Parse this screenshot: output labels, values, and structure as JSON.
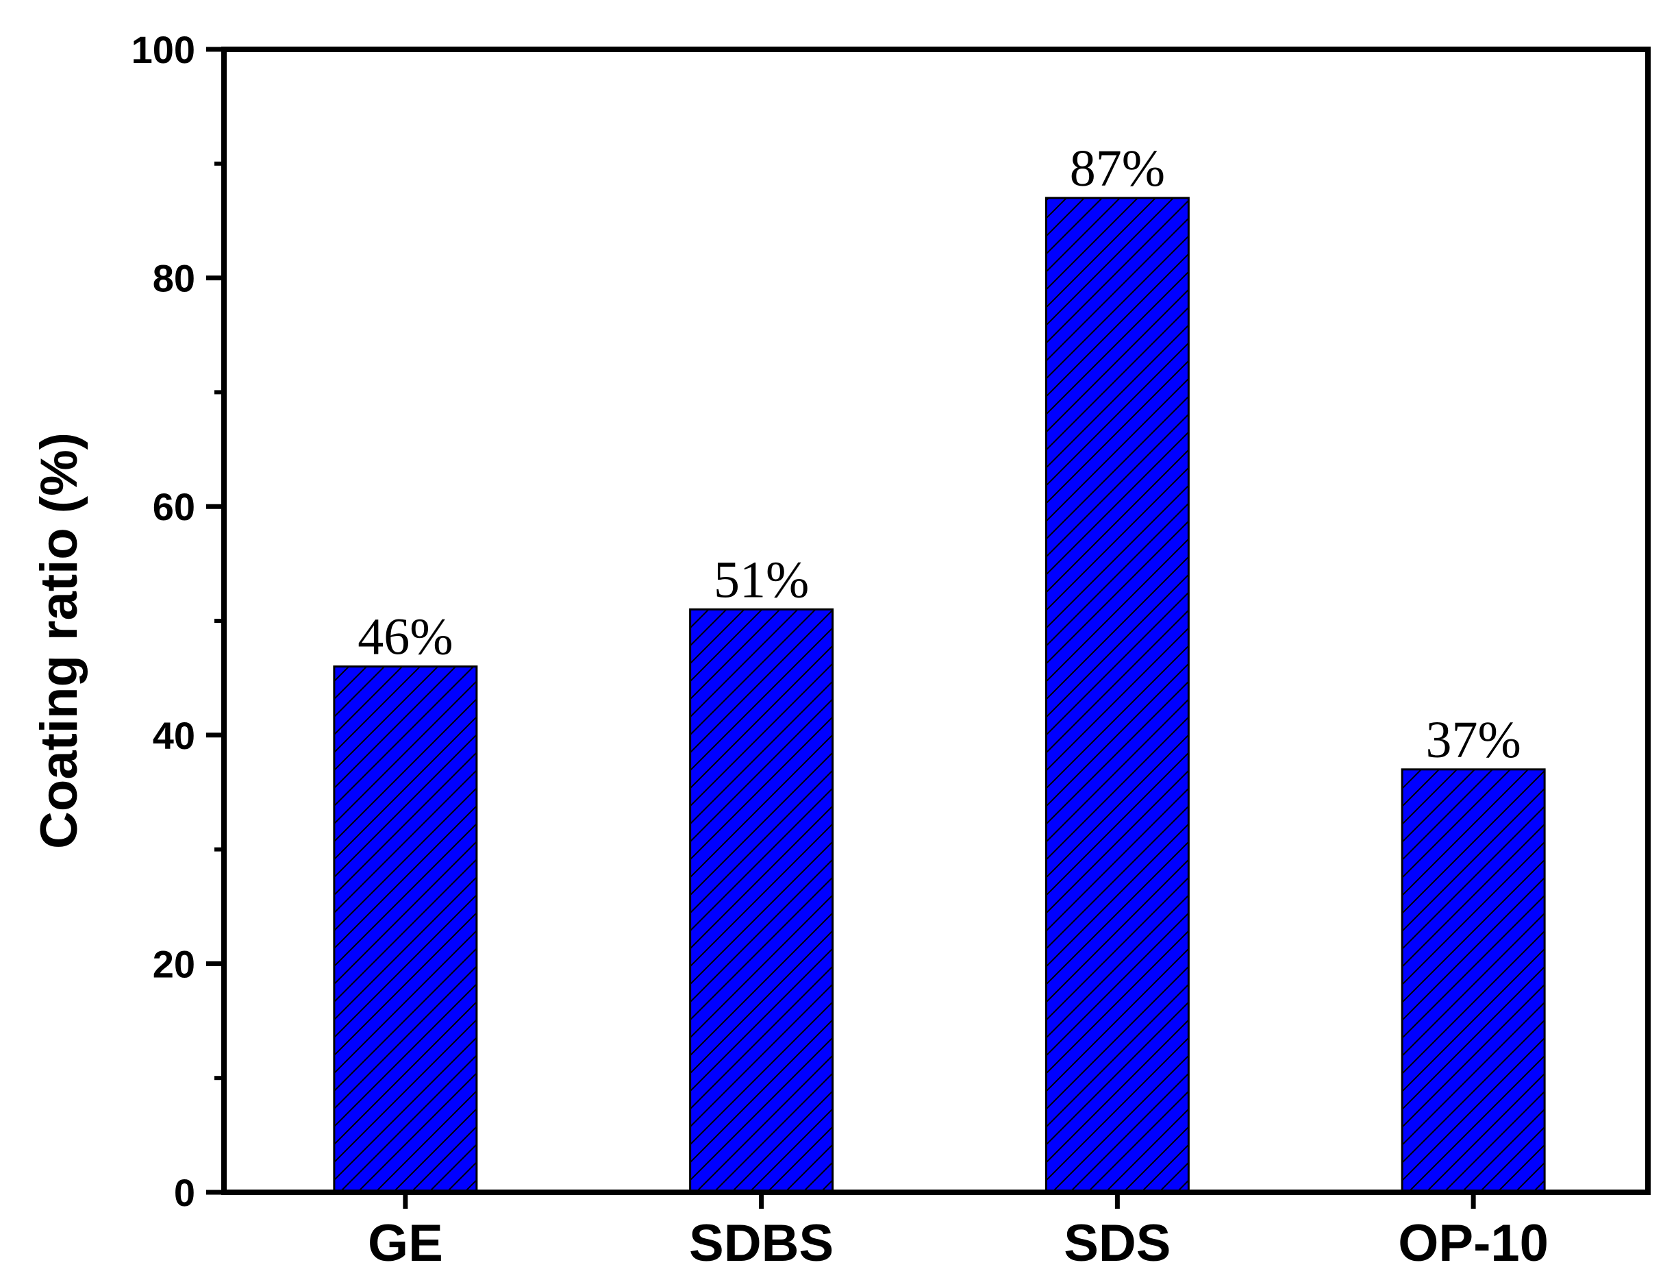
{
  "chart_data": {
    "type": "bar",
    "categories": [
      "GE",
      "SDBS",
      "SDS",
      "OP-10"
    ],
    "values": [
      46,
      51,
      87,
      37
    ],
    "data_labels": [
      "46%",
      "51%",
      "87%",
      "37%"
    ],
    "ylabel": "Coating ratio (%)",
    "xlabel": "",
    "ylim": [
      0,
      100
    ],
    "yticks": [
      0,
      20,
      40,
      60,
      80,
      100
    ],
    "grid": false,
    "bar_color": "#0000ff",
    "bar_pattern": "diagonal-hatch"
  }
}
